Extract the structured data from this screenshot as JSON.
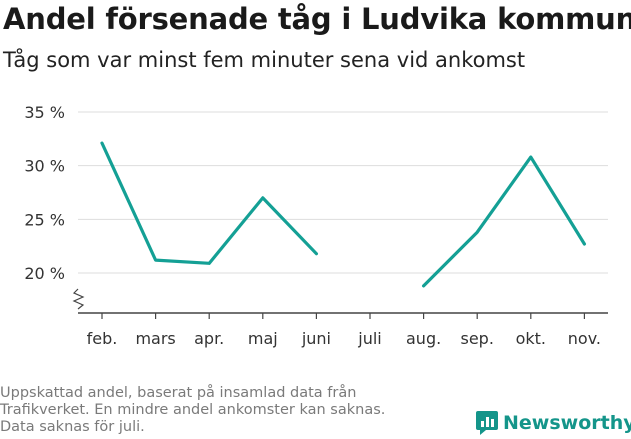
{
  "title": "Andel försenade tåg i Ludvika kommun",
  "subtitle": "Tåg som var minst fem minuter sena vid ankomst",
  "footer": {
    "line1": "Uppskattad andel, baserat på insamlad data från",
    "line2": "Trafikverket. En mindre andel ankomster kan saknas.",
    "line3": "Data saknas för juli."
  },
  "brand": {
    "name": "Newsworthy",
    "icon": "newsworthy-logo-icon"
  },
  "colors": {
    "line": "#14a095",
    "grid": "#dddddd",
    "axis": "#444444",
    "brand": "#14958a"
  },
  "chart_data": {
    "type": "line",
    "categories": [
      "feb.",
      "mars",
      "apr.",
      "maj",
      "juni",
      "juli",
      "aug.",
      "sep.",
      "okt.",
      "nov."
    ],
    "series": [
      {
        "values": [
          32.1,
          21.2,
          20.9,
          27.0,
          21.8,
          null,
          18.8,
          23.8,
          30.8,
          22.7
        ]
      }
    ],
    "y_ticks": [
      20,
      25,
      30,
      35
    ],
    "y_tick_labels": [
      "20 %",
      "25 %",
      "30 %",
      "35 %"
    ],
    "ylim": [
      15.5,
      35
    ],
    "y_axis_break": true,
    "grid": true,
    "xlabel": "",
    "ylabel": ""
  }
}
